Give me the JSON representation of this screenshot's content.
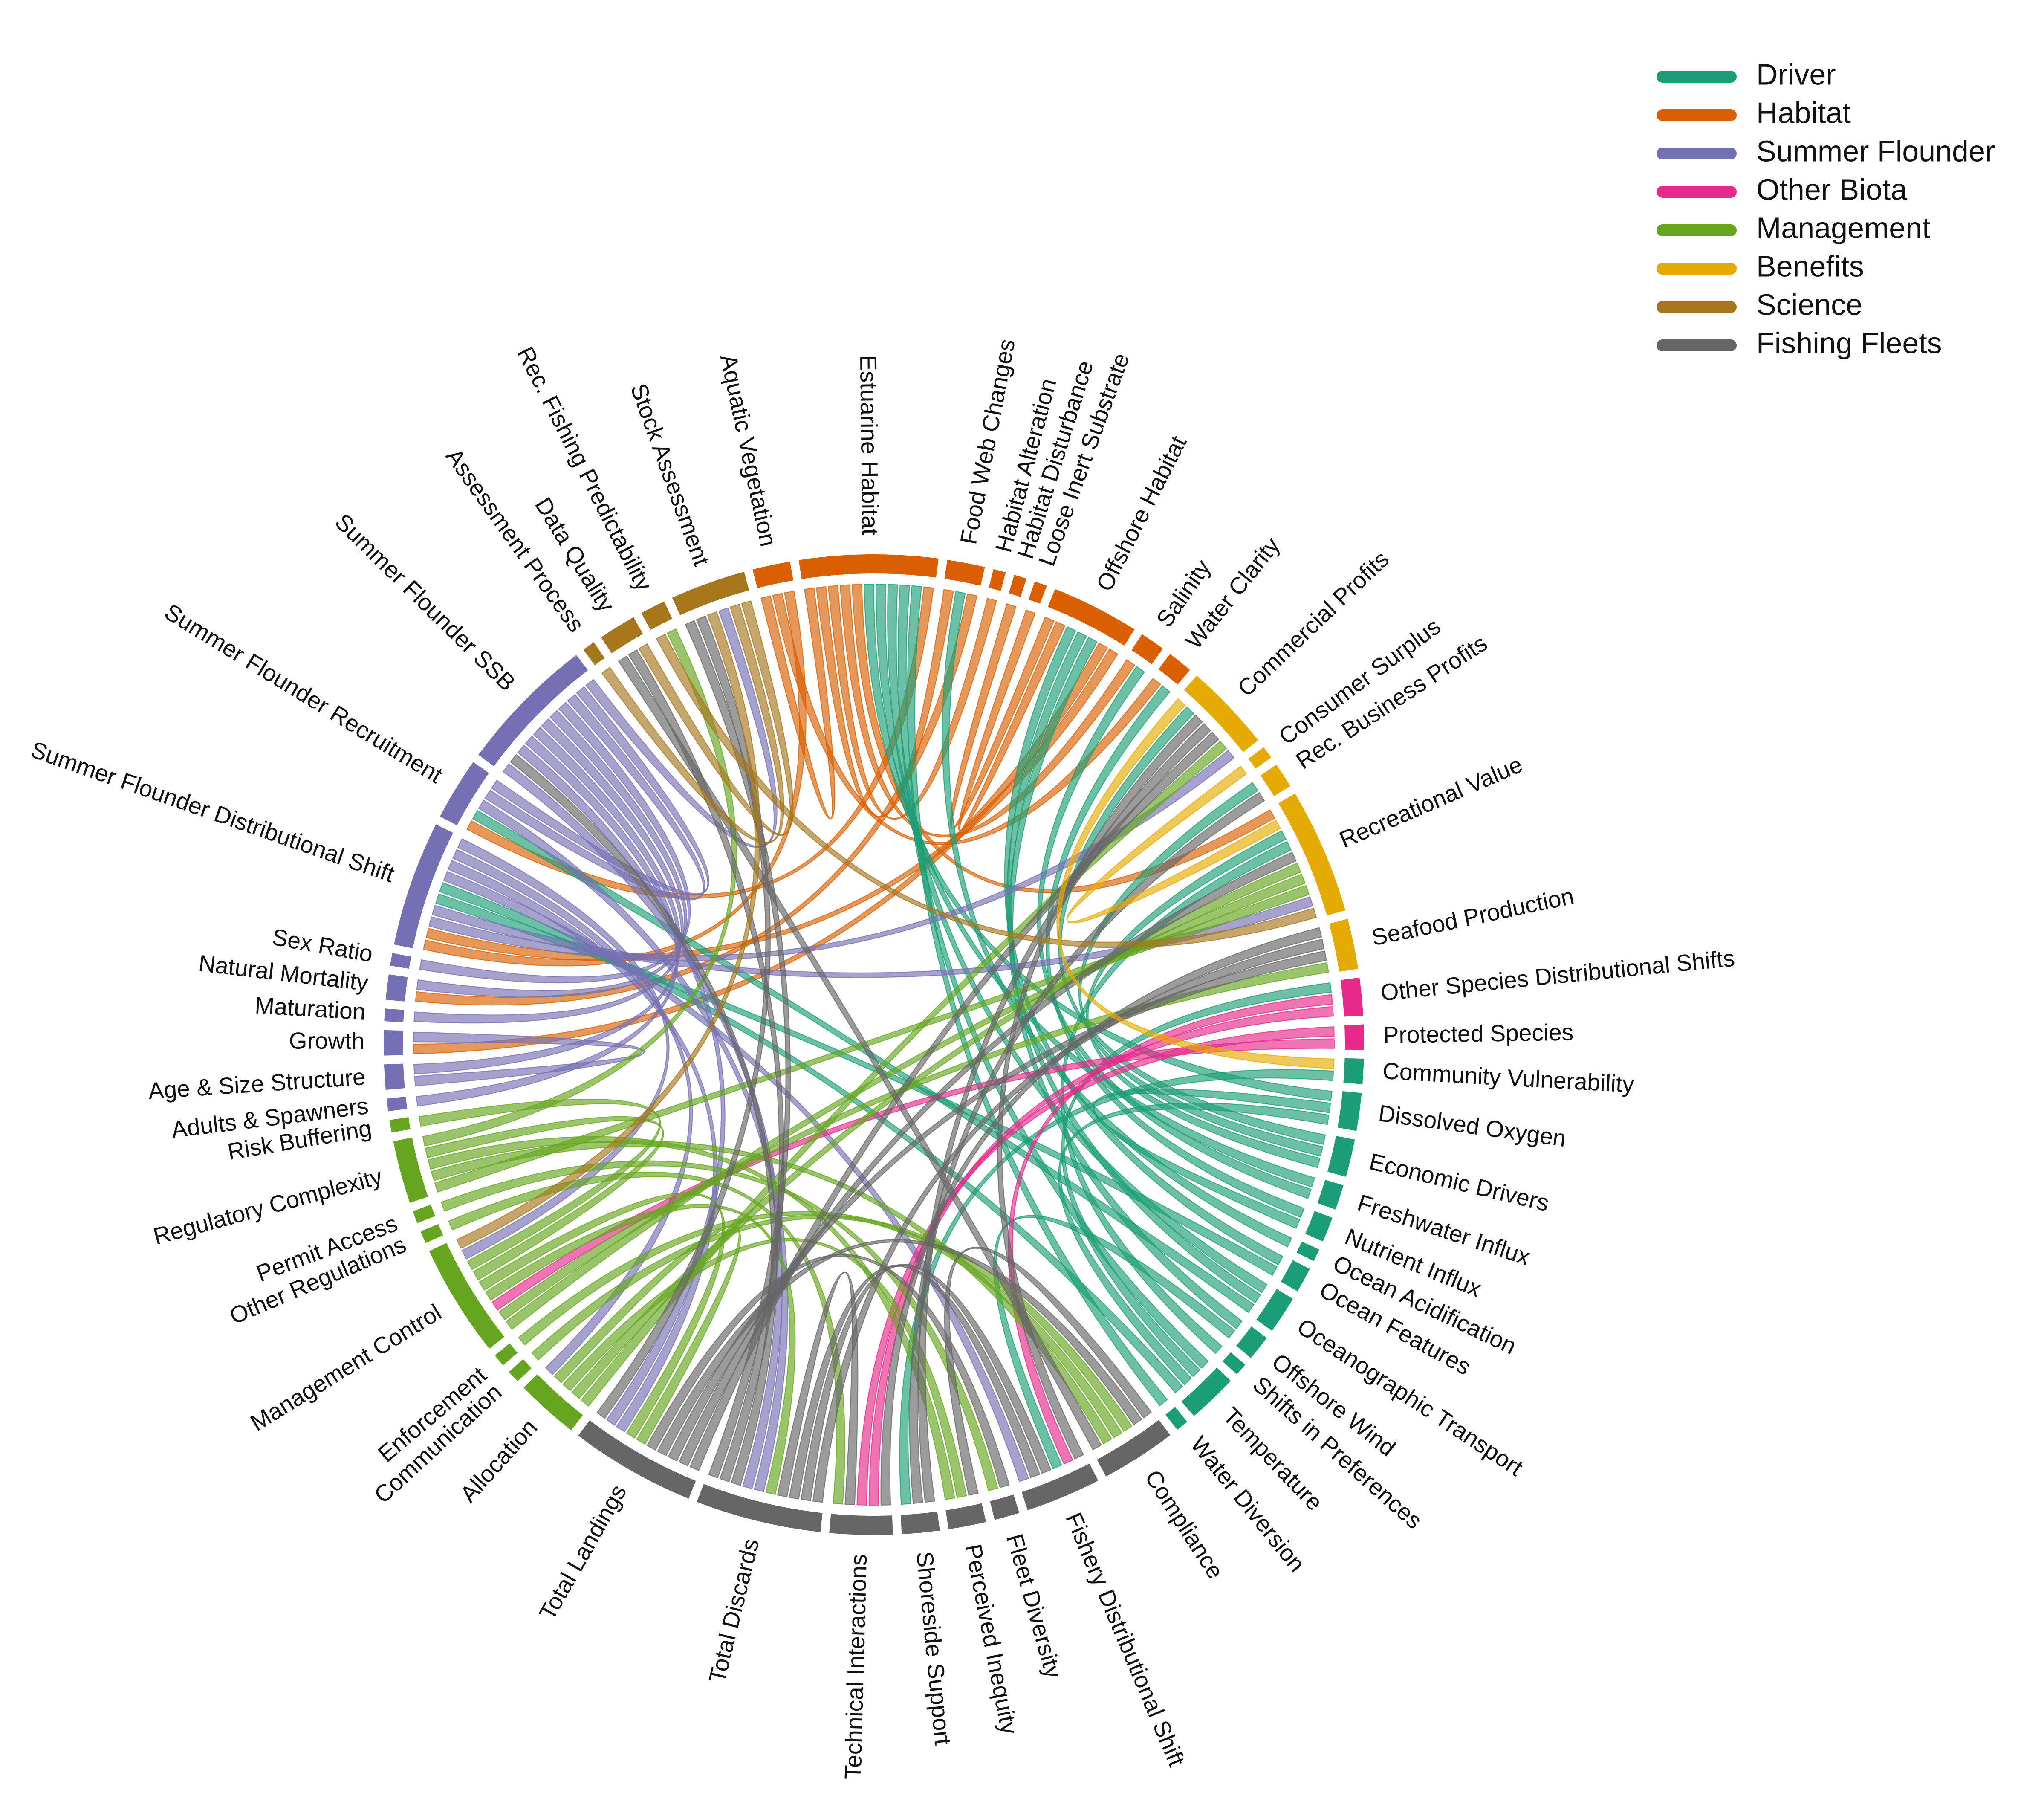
{
  "legend": [
    {
      "name": "Driver",
      "color": "#1b9e77"
    },
    {
      "name": "Habitat",
      "color": "#d95f02"
    },
    {
      "name": "Summer Flounder",
      "color": "#7570b3"
    },
    {
      "name": "Other Biota",
      "color": "#e7298a"
    },
    {
      "name": "Management",
      "color": "#66a61e"
    },
    {
      "name": "Benefits",
      "color": "#e6ab02"
    },
    {
      "name": "Science",
      "color": "#a6761d"
    },
    {
      "name": "Fishing Fleets",
      "color": "#666666"
    }
  ],
  "nodes": [
    {
      "label": "Aquatic Vegetation",
      "group": "Habitat"
    },
    {
      "label": "Estuarine Habitat",
      "group": "Habitat"
    },
    {
      "label": "Food Web Changes",
      "group": "Habitat"
    },
    {
      "label": "Habitat Alteration",
      "group": "Habitat"
    },
    {
      "label": "Habitat Disturbance",
      "group": "Habitat"
    },
    {
      "label": "Loose Inert Substrate",
      "group": "Habitat"
    },
    {
      "label": "Offshore Habitat",
      "group": "Habitat"
    },
    {
      "label": "Salinity",
      "group": "Habitat"
    },
    {
      "label": "Water Clarity",
      "group": "Habitat"
    },
    {
      "label": "Commercial Profits",
      "group": "Benefits"
    },
    {
      "label": "Consumer Surplus",
      "group": "Benefits"
    },
    {
      "label": "Rec. Business Profits",
      "group": "Benefits"
    },
    {
      "label": "Recreational Value",
      "group": "Benefits"
    },
    {
      "label": "Seafood Production",
      "group": "Benefits"
    },
    {
      "label": "Other Species Distributional Shifts",
      "group": "Other Biota"
    },
    {
      "label": "Protected Species",
      "group": "Other Biota"
    },
    {
      "label": "Community Vulnerability",
      "group": "Driver"
    },
    {
      "label": "Dissolved Oxygen",
      "group": "Driver"
    },
    {
      "label": "Economic Drivers",
      "group": "Driver"
    },
    {
      "label": "Freshwater Influx",
      "group": "Driver"
    },
    {
      "label": "Nutrient Influx",
      "group": "Driver"
    },
    {
      "label": "Ocean Acidification",
      "group": "Driver"
    },
    {
      "label": "Ocean Features",
      "group": "Driver"
    },
    {
      "label": "Oceanographic Transport",
      "group": "Driver"
    },
    {
      "label": "Offshore Wind",
      "group": "Driver"
    },
    {
      "label": "Shifts in Preferences",
      "group": "Driver"
    },
    {
      "label": "Temperature",
      "group": "Driver"
    },
    {
      "label": "Water Diversion",
      "group": "Driver"
    },
    {
      "label": "Compliance",
      "group": "Fishing Fleets"
    },
    {
      "label": "Fishery Distributional Shift",
      "group": "Fishing Fleets"
    },
    {
      "label": "Fleet Diversity",
      "group": "Fishing Fleets"
    },
    {
      "label": "Perceived Inequity",
      "group": "Fishing Fleets"
    },
    {
      "label": "Shoreside Support",
      "group": "Fishing Fleets"
    },
    {
      "label": "Technical Interactions",
      "group": "Fishing Fleets"
    },
    {
      "label": "Total Discards",
      "group": "Fishing Fleets"
    },
    {
      "label": "Total Landings",
      "group": "Fishing Fleets"
    },
    {
      "label": "Allocation",
      "group": "Management"
    },
    {
      "label": "Communication",
      "group": "Management"
    },
    {
      "label": "Enforcement",
      "group": "Management"
    },
    {
      "label": "Management Control",
      "group": "Management"
    },
    {
      "label": "Other Regulations",
      "group": "Management"
    },
    {
      "label": "Permit Access",
      "group": "Management"
    },
    {
      "label": "Regulatory Complexity",
      "group": "Management"
    },
    {
      "label": "Risk Buffering",
      "group": "Management"
    },
    {
      "label": "Adults & Spawners",
      "group": "Summer Flounder"
    },
    {
      "label": "Age & Size Structure",
      "group": "Summer Flounder"
    },
    {
      "label": "Growth",
      "group": "Summer Flounder"
    },
    {
      "label": "Maturation",
      "group": "Summer Flounder"
    },
    {
      "label": "Natural Mortality",
      "group": "Summer Flounder"
    },
    {
      "label": "Sex Ratio",
      "group": "Summer Flounder"
    },
    {
      "label": "Summer Flounder Distributional Shift",
      "group": "Summer Flounder"
    },
    {
      "label": "Summer Flounder Recruitment",
      "group": "Summer Flounder"
    },
    {
      "label": "Summer Flounder SSB",
      "group": "Summer Flounder"
    },
    {
      "label": "Assessment Process",
      "group": "Science"
    },
    {
      "label": "Data Quality",
      "group": "Science"
    },
    {
      "label": "Rec. Fishing Predictability",
      "group": "Science"
    },
    {
      "label": "Stock Assessment",
      "group": "Science"
    }
  ],
  "links": [
    {
      "from": "Estuarine Habitat",
      "to": "Food Web Changes"
    },
    {
      "from": "Estuarine Habitat",
      "to": "Summer Flounder Recruitment"
    },
    {
      "from": "Estuarine Habitat",
      "to": "Recreational Value"
    },
    {
      "from": "Aquatic Vegetation",
      "to": "Estuarine Habitat"
    },
    {
      "from": "Aquatic Vegetation",
      "to": "Summer Flounder Distributional Shift"
    },
    {
      "from": "Habitat Alteration",
      "to": "Estuarine Habitat"
    },
    {
      "from": "Habitat Disturbance",
      "to": "Offshore Habitat"
    },
    {
      "from": "Loose Inert Substrate",
      "to": "Offshore Habitat"
    },
    {
      "from": "Offshore Habitat",
      "to": "Summer Flounder Distributional Shift"
    },
    {
      "from": "Offshore Habitat",
      "to": "Growth"
    },
    {
      "from": "Food Web Changes",
      "to": "Natural Mortality"
    },
    {
      "from": "Salinity",
      "to": "Estuarine Habitat"
    },
    {
      "from": "Water Clarity",
      "to": "Aquatic Vegetation"
    },
    {
      "from": "Temperature",
      "to": "Estuarine Habitat"
    },
    {
      "from": "Temperature",
      "to": "Summer Flounder Distributional Shift"
    },
    {
      "from": "Temperature",
      "to": "Other Species Distributional Shifts"
    },
    {
      "from": "Temperature",
      "to": "Dissolved Oxygen"
    },
    {
      "from": "Oceanographic Transport",
      "to": "Summer Flounder Recruitment"
    },
    {
      "from": "Oceanographic Transport",
      "to": "Estuarine Habitat"
    },
    {
      "from": "Oceanographic Transport",
      "to": "Offshore Habitat"
    },
    {
      "from": "Ocean Features",
      "to": "Summer Flounder Distributional Shift"
    },
    {
      "from": "Ocean Features",
      "to": "Offshore Habitat"
    },
    {
      "from": "Offshore Wind",
      "to": "Offshore Habitat"
    },
    {
      "from": "Offshore Wind",
      "to": "Fishery Distributional Shift"
    },
    {
      "from": "Freshwater Influx",
      "to": "Salinity"
    },
    {
      "from": "Freshwater Influx",
      "to": "Estuarine Habitat"
    },
    {
      "from": "Nutrient Influx",
      "to": "Water Clarity"
    },
    {
      "from": "Nutrient Influx",
      "to": "Dissolved Oxygen"
    },
    {
      "from": "Dissolved Oxygen",
      "to": "Estuarine Habitat"
    },
    {
      "from": "Ocean Acidification",
      "to": "Food Web Changes"
    },
    {
      "from": "Economic Drivers",
      "to": "Commercial Profits"
    },
    {
      "from": "Economic Drivers",
      "to": "Recreational Value"
    },
    {
      "from": "Economic Drivers",
      "to": "Rec. Business Profits"
    },
    {
      "from": "Community Vulnerability",
      "to": "Shoreside Support"
    },
    {
      "from": "Shifts in Preferences",
      "to": "Recreational Value"
    },
    {
      "from": "Water Diversion",
      "to": "Estuarine Habitat"
    },
    {
      "from": "Summer Flounder SSB",
      "to": "Total Landings"
    },
    {
      "from": "Summer Flounder SSB",
      "to": "Total Discards"
    },
    {
      "from": "Summer Flounder SSB",
      "to": "Summer Flounder Recruitment"
    },
    {
      "from": "Summer Flounder SSB",
      "to": "Stock Assessment"
    },
    {
      "from": "Summer Flounder Recruitment",
      "to": "Summer Flounder SSB"
    },
    {
      "from": "Summer Flounder Recruitment",
      "to": "Total Discards"
    },
    {
      "from": "Summer Flounder Distributional Shift",
      "to": "Total Landings"
    },
    {
      "from": "Summer Flounder Distributional Shift",
      "to": "Fishery Distributional Shift"
    },
    {
      "from": "Summer Flounder Distributional Shift",
      "to": "Allocation"
    },
    {
      "from": "Summer Flounder Distributional Shift",
      "to": "Management Control"
    },
    {
      "from": "Summer Flounder Distributional Shift",
      "to": "Recreational Value"
    },
    {
      "from": "Summer Flounder Distributional Shift",
      "to": "Commercial Profits"
    },
    {
      "from": "Sex Ratio",
      "to": "Summer Flounder SSB"
    },
    {
      "from": "Natural Mortality",
      "to": "Summer Flounder SSB"
    },
    {
      "from": "Maturation",
      "to": "Summer Flounder SSB"
    },
    {
      "from": "Growth",
      "to": "Age & Size Structure"
    },
    {
      "from": "Age & Size Structure",
      "to": "Summer Flounder SSB"
    },
    {
      "from": "Adults & Spawners",
      "to": "Summer Flounder SSB"
    },
    {
      "from": "Other Species Distributional Shifts",
      "to": "Technical Interactions"
    },
    {
      "from": "Other Species Distributional Shifts",
      "to": "Fishery Distributional Shift"
    },
    {
      "from": "Protected Species",
      "to": "Technical Interactions"
    },
    {
      "from": "Protected Species",
      "to": "Management Control"
    },
    {
      "from": "Risk Buffering",
      "to": "Management Control"
    },
    {
      "from": "Regulatory Complexity",
      "to": "Compliance"
    },
    {
      "from": "Regulatory Complexity",
      "to": "Recreational Value"
    },
    {
      "from": "Regulatory Complexity",
      "to": "Perceived Inequity"
    },
    {
      "from": "Regulatory Complexity",
      "to": "Rec. Fishing Predictability"
    },
    {
      "from": "Permit Access",
      "to": "Fleet Diversity"
    },
    {
      "from": "Other Regulations",
      "to": "Technical Interactions"
    },
    {
      "from": "Management Control",
      "to": "Total Landings"
    },
    {
      "from": "Management Control",
      "to": "Total Discards"
    },
    {
      "from": "Management Control",
      "to": "Regulatory Complexity"
    },
    {
      "from": "Management Control",
      "to": "Recreational Value"
    },
    {
      "from": "Management Control",
      "to": "Seafood Production"
    },
    {
      "from": "Enforcement",
      "to": "Compliance"
    },
    {
      "from": "Communication",
      "to": "Compliance"
    },
    {
      "from": "Allocation",
      "to": "Perceived Inequity"
    },
    {
      "from": "Allocation",
      "to": "Total Landings"
    },
    {
      "from": "Allocation",
      "to": "Commercial Profits"
    },
    {
      "from": "Allocation",
      "to": "Recreational Value"
    },
    {
      "from": "Total Landings",
      "to": "Seafood Production"
    },
    {
      "from": "Total Landings",
      "to": "Commercial Profits"
    },
    {
      "from": "Total Landings",
      "to": "Recreational Value"
    },
    {
      "from": "Total Landings",
      "to": "Stock Assessment"
    },
    {
      "from": "Total Discards",
      "to": "Summer Flounder SSB"
    },
    {
      "from": "Total Discards",
      "to": "Stock Assessment"
    },
    {
      "from": "Total Discards",
      "to": "Data Quality"
    },
    {
      "from": "Total Discards",
      "to": "Seafood Production"
    },
    {
      "from": "Total Discards",
      "to": "Fishery Distributional Shift"
    },
    {
      "from": "Technical Interactions",
      "to": "Total Discards"
    },
    {
      "from": "Technical Interactions",
      "to": "Seafood Production"
    },
    {
      "from": "Shoreside Support",
      "to": "Commercial Profits"
    },
    {
      "from": "Shoreside Support",
      "to": "Rec. Business Profits"
    },
    {
      "from": "Fleet Diversity",
      "to": "Total Landings"
    },
    {
      "from": "Fishery Distributional Shift",
      "to": "Total Discards"
    },
    {
      "from": "Fishery Distributional Shift",
      "to": "Commercial Profits"
    },
    {
      "from": "Compliance",
      "to": "Total Landings"
    },
    {
      "from": "Compliance",
      "to": "Data Quality"
    },
    {
      "from": "Perceived Inequity",
      "to": "Compliance"
    },
    {
      "from": "Stock Assessment",
      "to": "Management Control"
    },
    {
      "from": "Data Quality",
      "to": "Stock Assessment"
    },
    {
      "from": "Assessment Process",
      "to": "Stock Assessment"
    },
    {
      "from": "Rec. Fishing Predictability",
      "to": "Recreational Value"
    },
    {
      "from": "Recreational Value",
      "to": "Consumer Surplus"
    },
    {
      "from": "Commercial Profits",
      "to": "Community Vulnerability"
    }
  ]
}
